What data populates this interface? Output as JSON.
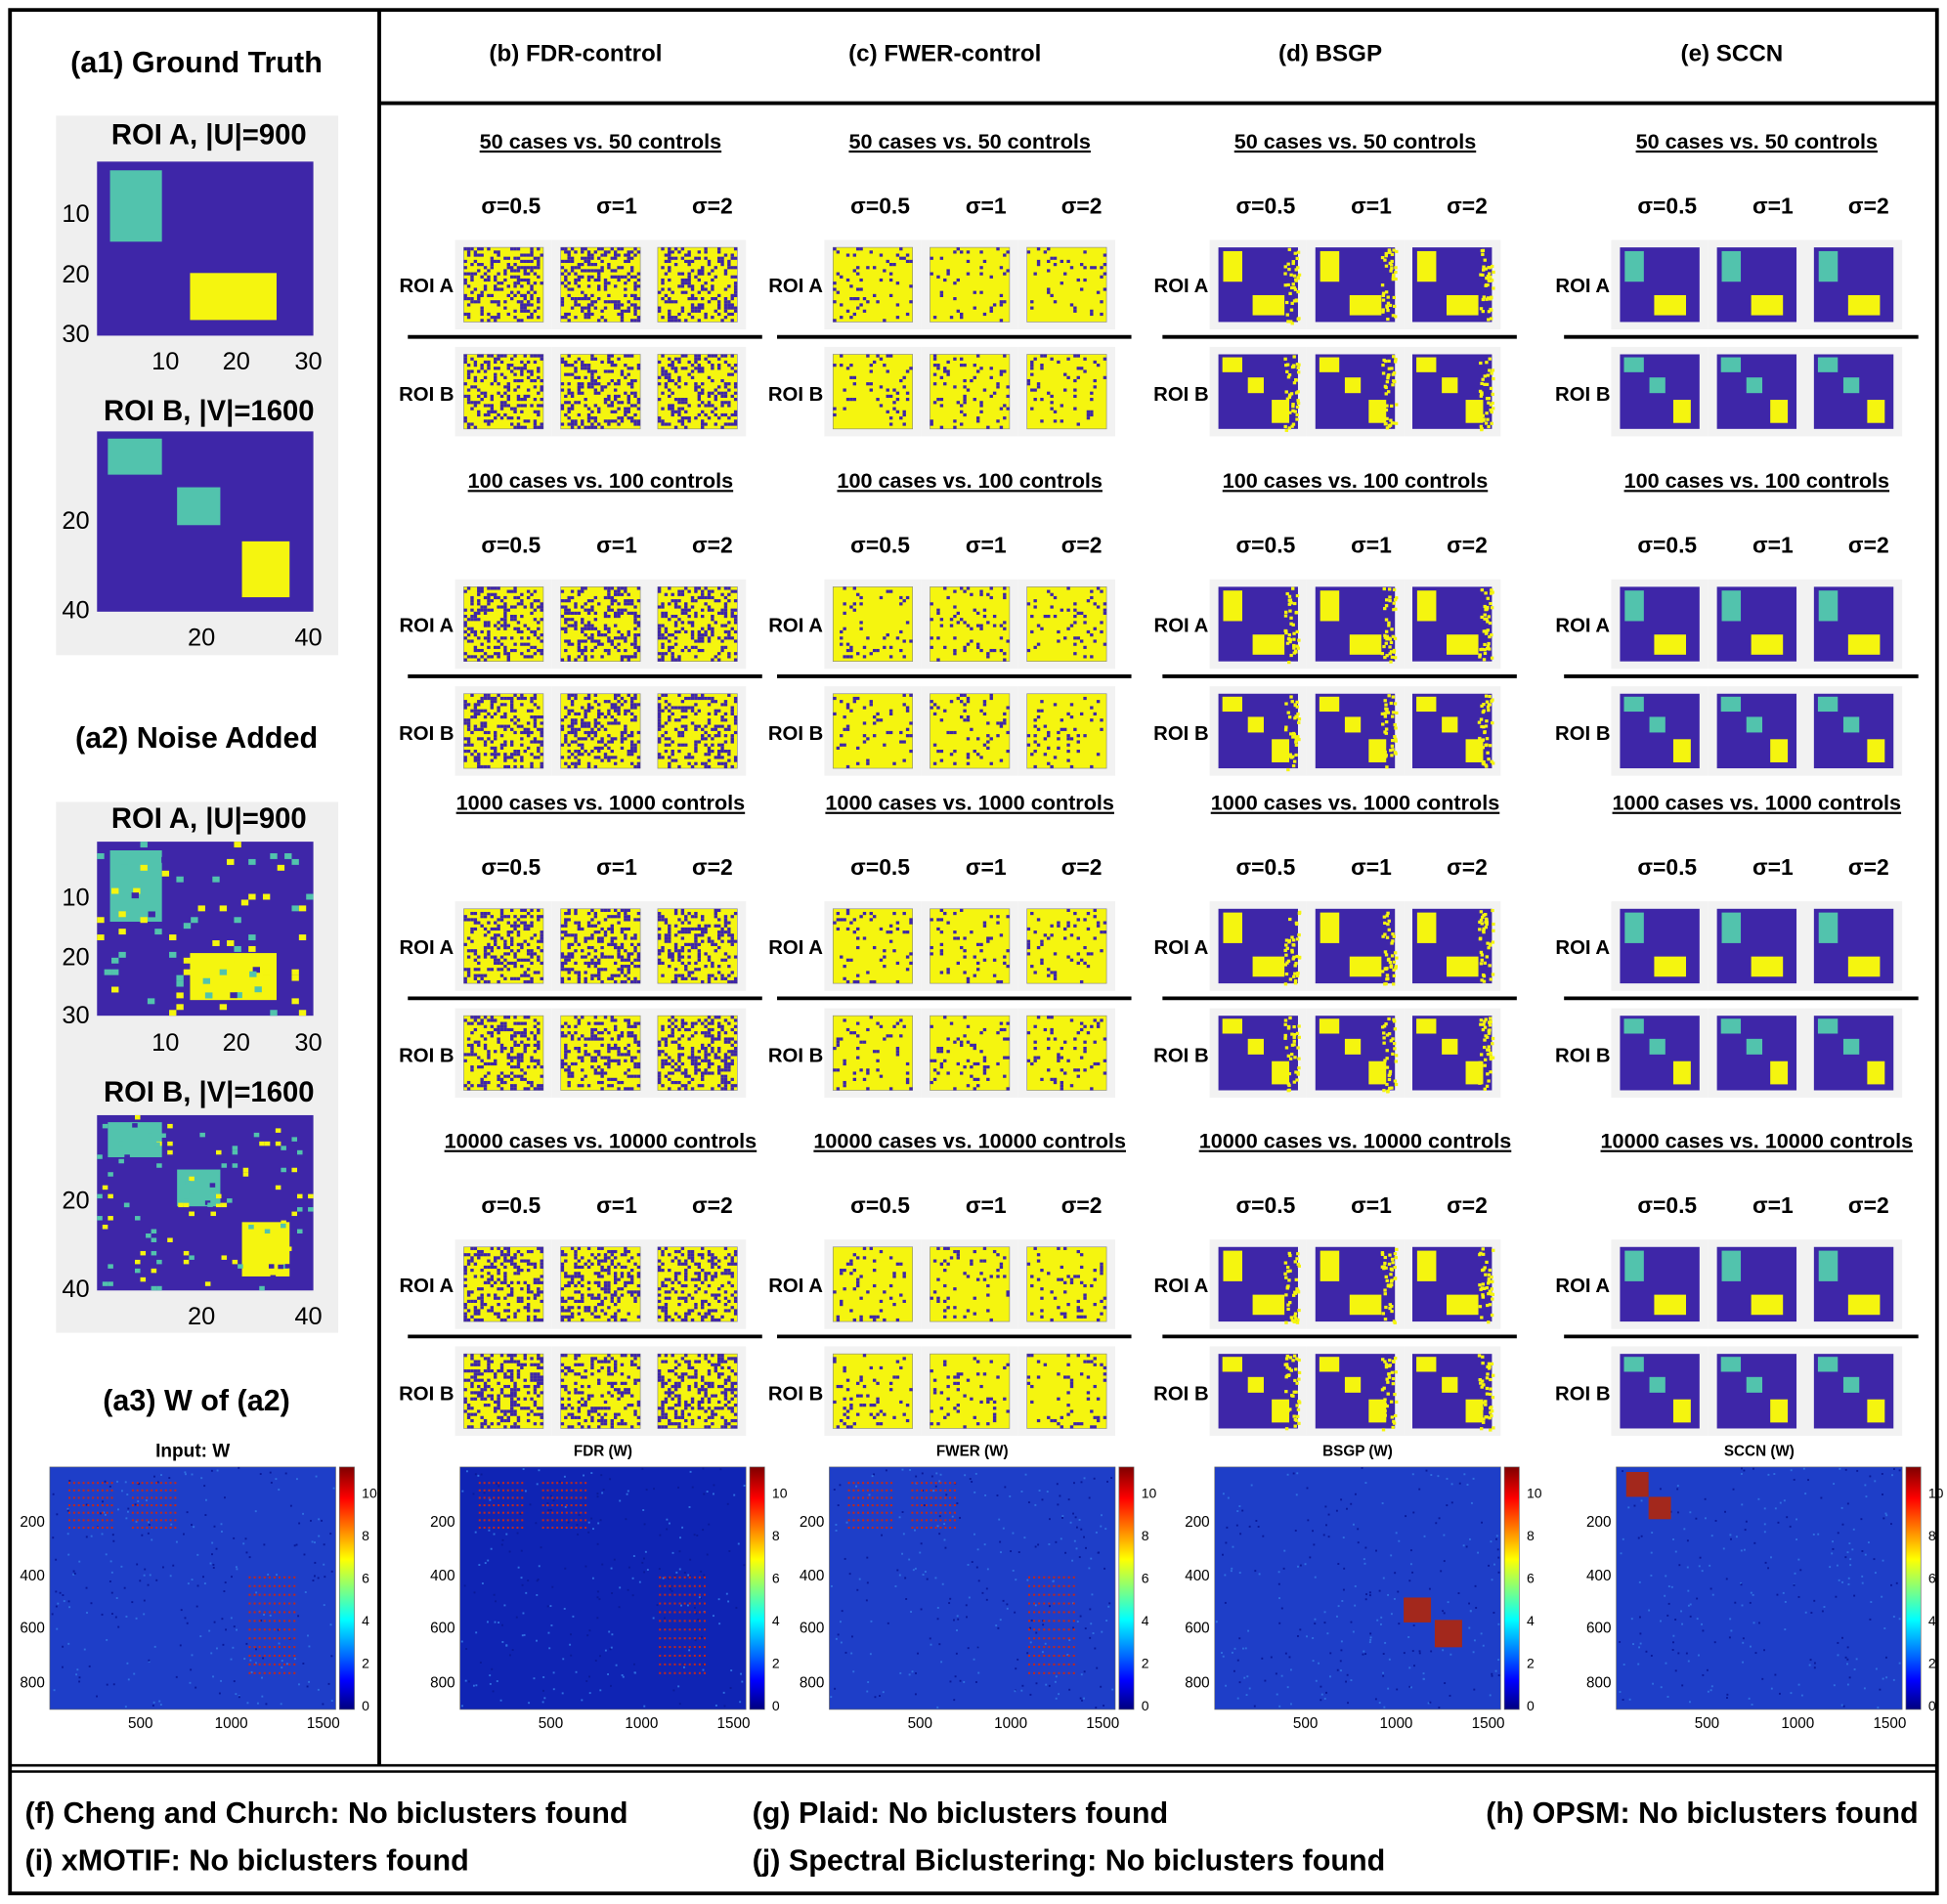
{
  "header": {
    "columns": [
      "(b) FDR-control",
      "(c) FWER-control",
      "(d) BSGP",
      "(e) SCCN"
    ]
  },
  "panel_a": {
    "a1": {
      "title": "(a1) Ground Truth",
      "roi_a": {
        "title": "ROI A, |U|=900",
        "yticks": [
          10,
          20,
          30
        ],
        "xticks": [
          10,
          20,
          30
        ]
      },
      "roi_b": {
        "title": "ROI B, |V|=1600",
        "yticks": [
          20,
          40
        ],
        "xticks": [
          20,
          40
        ]
      }
    },
    "a2": {
      "title": "(a2) Noise Added",
      "roi_a": {
        "title": "ROI A, |U|=900",
        "yticks": [
          10,
          20,
          30
        ],
        "xticks": [
          10,
          20,
          30
        ]
      },
      "roi_b": {
        "title": "ROI B, |V|=1600",
        "yticks": [
          20,
          40
        ],
        "xticks": [
          20,
          40
        ]
      }
    },
    "a3": {
      "title": "(a3) W of (a2)",
      "plot_title": "Input: W",
      "yticks": [
        200,
        400,
        600,
        800
      ],
      "xticks": [
        500,
        1000,
        1500
      ],
      "colorbar_ticks": [
        0,
        2,
        4,
        6,
        8,
        10
      ]
    }
  },
  "methods": [
    {
      "blocks": [
        {
          "title": "50 cases vs. 50 controls",
          "sigmas": [
            "σ=0.5",
            "σ=1",
            "σ=2"
          ],
          "rows": [
            "ROI A",
            "ROI B"
          ]
        },
        {
          "title": "100 cases vs. 100 controls",
          "sigmas": [
            "σ=0.5",
            "σ=1",
            "σ=2"
          ],
          "rows": [
            "ROI A",
            "ROI B"
          ]
        },
        {
          "title": "1000 cases vs. 1000 controls",
          "sigmas": [
            "σ=0.5",
            "σ=1",
            "σ=2"
          ],
          "rows": [
            "ROI A",
            "ROI B"
          ]
        },
        {
          "title": "10000 cases vs. 10000 controls",
          "sigmas": [
            "σ=0.5",
            "σ=1",
            "σ=2"
          ],
          "rows": [
            "ROI A",
            "ROI B"
          ]
        }
      ],
      "w_plot": {
        "title": "FDR (W)",
        "yticks": [
          200,
          400,
          600,
          800
        ],
        "xticks": [
          500,
          1000,
          1500
        ],
        "colorbar_ticks": [
          0,
          2,
          4,
          6,
          8,
          10
        ]
      }
    },
    {
      "blocks": [
        {
          "title": "50 cases vs. 50 controls",
          "sigmas": [
            "σ=0.5",
            "σ=1",
            "σ=2"
          ],
          "rows": [
            "ROI A",
            "ROI B"
          ]
        },
        {
          "title": "100 cases vs. 100 controls",
          "sigmas": [
            "σ=0.5",
            "σ=1",
            "σ=2"
          ],
          "rows": [
            "ROI A",
            "ROI B"
          ]
        },
        {
          "title": "1000 cases vs. 1000 controls",
          "sigmas": [
            "σ=0.5",
            "σ=1",
            "σ=2"
          ],
          "rows": [
            "ROI A",
            "ROI B"
          ]
        },
        {
          "title": "10000 cases vs. 10000 controls",
          "sigmas": [
            "σ=0.5",
            "σ=1",
            "σ=2"
          ],
          "rows": [
            "ROI A",
            "ROI B"
          ]
        }
      ],
      "w_plot": {
        "title": "FWER (W)",
        "yticks": [
          200,
          400,
          600,
          800
        ],
        "xticks": [
          500,
          1000,
          1500
        ],
        "colorbar_ticks": [
          0,
          2,
          4,
          6,
          8,
          10
        ]
      }
    },
    {
      "blocks": [
        {
          "title": "50 cases vs. 50 controls",
          "sigmas": [
            "σ=0.5",
            "σ=1",
            "σ=2"
          ],
          "rows": [
            "ROI A",
            "ROI B"
          ]
        },
        {
          "title": "100 cases vs. 100 controls",
          "sigmas": [
            "σ=0.5",
            "σ=1",
            "σ=2"
          ],
          "rows": [
            "ROI A",
            "ROI B"
          ]
        },
        {
          "title": "1000 cases vs. 1000 controls",
          "sigmas": [
            "σ=0.5",
            "σ=1",
            "σ=2"
          ],
          "rows": [
            "ROI A",
            "ROI B"
          ]
        },
        {
          "title": "10000 cases vs. 10000 controls",
          "sigmas": [
            "σ=0.5",
            "σ=1",
            "σ=2"
          ],
          "rows": [
            "ROI A",
            "ROI B"
          ]
        }
      ],
      "w_plot": {
        "title": "BSGP (W)",
        "yticks": [
          200,
          400,
          600,
          800
        ],
        "xticks": [
          500,
          1000,
          1500
        ],
        "colorbar_ticks": [
          0,
          2,
          4,
          6,
          8,
          10
        ]
      }
    },
    {
      "blocks": [
        {
          "title": "50 cases vs. 50 controls",
          "sigmas": [
            "σ=0.5",
            "σ=1",
            "σ=2"
          ],
          "rows": [
            "ROI A",
            "ROI B"
          ]
        },
        {
          "title": "100 cases vs. 100 controls",
          "sigmas": [
            "σ=0.5",
            "σ=1",
            "σ=2"
          ],
          "rows": [
            "ROI A",
            "ROI B"
          ]
        },
        {
          "title": "1000 cases vs. 1000 controls",
          "sigmas": [
            "σ=0.5",
            "σ=1",
            "σ=2"
          ],
          "rows": [
            "ROI A",
            "ROI B"
          ]
        },
        {
          "title": "10000 cases vs. 10000 controls",
          "sigmas": [
            "σ=0.5",
            "σ=1",
            "σ=2"
          ],
          "rows": [
            "ROI A",
            "ROI B"
          ]
        }
      ],
      "w_plot": {
        "title": "SCCN (W)",
        "yticks": [
          200,
          400,
          600,
          800
        ],
        "xticks": [
          500,
          1000,
          1500
        ],
        "colorbar_ticks": [
          0,
          2,
          4,
          6,
          8,
          10
        ]
      }
    }
  ],
  "footer": {
    "notes": [
      "(f) Cheng and Church: No biclusters found",
      "(g) Plaid: No biclusters found",
      "(h) OPSM: No biclusters found",
      "(i) xMOTIF: No biclusters found",
      "(j) Spectral Biclustering: No biclusters found"
    ]
  }
}
